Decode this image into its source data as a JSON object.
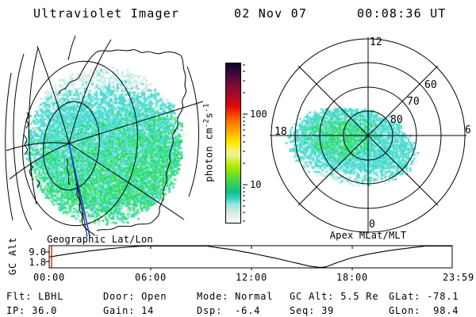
{
  "header": {
    "title": "Ultraviolet Imager",
    "date": "02 Nov 07",
    "time": "00:08:36 UT"
  },
  "geo_map": {
    "caption": "Geographic Lat/Lon"
  },
  "polar_map": {
    "caption": "Apex MLat/MLT",
    "mlt_top": "12",
    "mlt_right": "6",
    "mlt_bottom": "0",
    "mlt_left": "18",
    "mlat_60": "60",
    "mlat_70": "70",
    "mlat_80": "80"
  },
  "colorbar": {
    "unit_prefix": "photon cm",
    "unit_sup1": "-2",
    "unit_mid": "s",
    "unit_sup2": "-1",
    "tick_100": "100",
    "tick_10": "10",
    "scale": "log",
    "colors_top_to_bottom": [
      "#07052f",
      "#2e0833",
      "#4c0938",
      "#690a39",
      "#860a33",
      "#a30929",
      "#c1081a",
      "#de0708",
      "#f23000",
      "#fa6000",
      "#fd8600",
      "#fea800",
      "#fec900",
      "#fee800",
      "#f6f25c",
      "#e9f2a0",
      "#d0ee30",
      "#a6e800",
      "#7adf1c",
      "#4cd54a",
      "#2bcb66",
      "#12bf85",
      "#30cfc0",
      "#96e8de",
      "#c6e9e2",
      "#e6efeb",
      "#ffffff"
    ]
  },
  "altitude_panel": {
    "ylabel": "GC Alt",
    "ytick_top": "9.0",
    "ytick_bottom": "1.8",
    "xticks": [
      "00:00",
      "06:00",
      "12:00",
      "18:00",
      "23:59"
    ],
    "marker_color": "#dd2200"
  },
  "palette": {
    "green": "#2ede72",
    "green_alt": "#24d465",
    "green_bright": "#8aec4a",
    "cyan": "#3fd8cc",
    "cyan_alt": "#5ae0d5",
    "cyan_pale": "#b2efe7",
    "gray_pale": "#dce9e4",
    "white": "#ffffff",
    "track_blue": "#2233ee"
  },
  "status": {
    "rows": [
      [
        "Flt: LBHL",
        "Door: Open",
        "Mode: Normal",
        "GC Alt: 5.5 Re",
        "GLat: -78.1"
      ],
      [
        "IP: 36.0",
        "Gain: 14",
        "Dsp:  -6.4",
        "Seq: 39",
        "GLon:  98.4"
      ]
    ]
  },
  "chart_data": [
    {
      "type": "heatmap",
      "title": "Geographic Lat/Lon",
      "description": "UV image of the southern polar region over a geographic lat/lon grid with the Antarctica coastline; diffuse emission of roughly 3-30 photon cm-2 s-1 (cyan/green) fading to <3 (white/gray) toward the image rim; blue line marks a meridian/orbit track from the pole to the image edge",
      "value_units": "photon cm-2 s-1",
      "approx_value_range": [
        3,
        30
      ]
    },
    {
      "type": "heatmap",
      "title": "Apex MLat/MLT",
      "description": "Same UV image mapped onto an apex magnetic latitude / magnetic local time polar grid; emission blob centered poleward of 80 MLat extending toward 18 MLT, green core ~20-30, cyan ~8-15, gray fringe <5 photon cm-2 s-1",
      "rings_mlat": [
        80,
        70,
        60,
        50
      ],
      "spokes_mlt": [
        0,
        6,
        12,
        18
      ],
      "value_units": "photon cm-2 s-1",
      "approx_value_range": [
        3,
        30
      ]
    },
    {
      "type": "line",
      "title": "GC Alt",
      "xlabel": "UT",
      "ylabel": "GC Alt (Re)",
      "xtick_labels": [
        "00:00",
        "06:00",
        "12:00",
        "18:00",
        "23:59"
      ],
      "ytick_values": [
        9.0,
        1.8
      ],
      "x_hours": [
        0,
        0.5,
        1,
        1.5,
        2,
        2.5,
        3,
        3.5,
        4,
        4.5,
        5,
        5.5,
        6,
        7,
        8,
        9,
        9.4,
        10,
        10.5,
        11,
        11.5,
        12,
        12.5,
        13,
        13.5,
        14,
        14.5,
        15,
        15.5,
        16,
        16.2,
        16.5,
        17,
        17.5,
        18,
        18.5,
        19,
        19.5,
        20,
        20.5,
        21,
        21.5,
        22,
        22.4,
        23,
        24
      ],
      "height_frac_of_panel": [
        0.5,
        0.56,
        0.62,
        0.68,
        0.73,
        0.785,
        0.83,
        0.875,
        0.91,
        0.945,
        0.97,
        0.995,
        1.0,
        1.0,
        1.0,
        1.0,
        1.0,
        0.93,
        0.88,
        0.82,
        0.75,
        0.68,
        0.6,
        0.52,
        0.44,
        0.35,
        0.26,
        0.17,
        0.08,
        0.03,
        0.02,
        0.05,
        0.2,
        0.33,
        0.46,
        0.55,
        0.63,
        0.7,
        0.76,
        0.82,
        0.87,
        0.92,
        0.96,
        1.0,
        1.0,
        1.0
      ],
      "current_time_hours": 0.143,
      "note": "orbit altitude vs UT; apogee portions clipped flat at panel top; red vertical marker at current time 00:08 UT"
    },
    {
      "type": "colorbar",
      "title": "photon cm-2 s-1",
      "scale": "log",
      "tick_values": [
        100,
        10
      ],
      "approx_range": [
        3,
        500
      ]
    }
  ]
}
